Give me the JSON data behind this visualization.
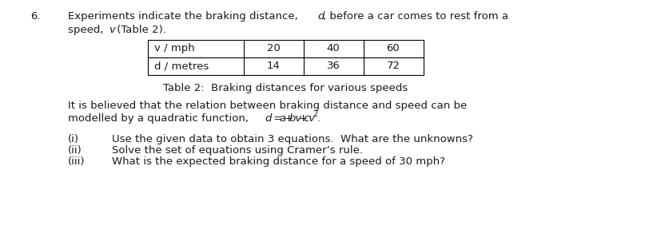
{
  "question_number": "6.",
  "line1_plain1": "Experiments indicate the braking distance, ",
  "line1_italic": "d",
  "line1_plain2": ", before a car comes to rest from a",
  "line2_plain1": "speed, ",
  "line2_italic": "v",
  "line2_plain2": " (Table 2).",
  "table_headers": [
    "v / mph",
    "20",
    "40",
    "60"
  ],
  "table_row2": [
    "d / metres",
    "14",
    "36",
    "72"
  ],
  "table_caption": "Table 2:  Braking distances for various speeds",
  "para_line1": "It is believed that the relation between braking distance and speed can be",
  "para_line2_plain": "modelled by a quadratic function, ",
  "items": [
    {
      "label": "(i)",
      "text": "Use the given data to obtain 3 equations.  What are the unknowns?"
    },
    {
      "label": "(ii)",
      "text": "Solve the set of equations using Cramer’s rule."
    },
    {
      "label": "(iii)",
      "text": "What is the expected braking distance for a speed of 30 mph?"
    }
  ],
  "bg_color": "#ffffff",
  "text_color": "#1a1a1a",
  "font_size": 9.5
}
